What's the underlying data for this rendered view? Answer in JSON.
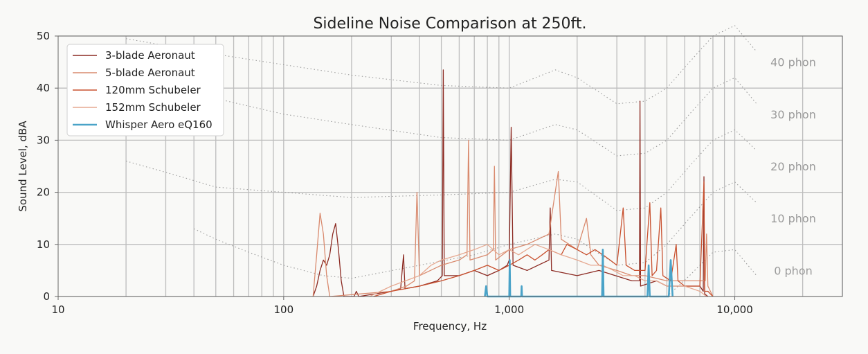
{
  "chart_data": {
    "type": "line",
    "title": "Sideline Noise Comparison at 250ft.",
    "xlabel": "Frequency, Hz",
    "ylabel": "Sound Level, dBA",
    "xscale": "log",
    "xlim": [
      10,
      30000
    ],
    "ylim": [
      0,
      50
    ],
    "grid": true,
    "legend_position": "top-left",
    "x_ticks": [
      {
        "value": 10,
        "label": "10"
      },
      {
        "value": 100,
        "label": "100"
      },
      {
        "value": 1000,
        "label": "1,000"
      },
      {
        "value": 10000,
        "label": "10,000"
      }
    ],
    "y_ticks": [
      {
        "value": 0,
        "label": "0"
      },
      {
        "value": 10,
        "label": "10"
      },
      {
        "value": 20,
        "label": "20"
      },
      {
        "value": 30,
        "label": "30"
      },
      {
        "value": 40,
        "label": "40"
      },
      {
        "value": 50,
        "label": "50"
      }
    ],
    "phon_contours": [
      {
        "label": "40 phon",
        "label_value": 45,
        "points": [
          [
            20,
            49.5
          ],
          [
            50,
            46.5
          ],
          [
            100,
            44.5
          ],
          [
            200,
            42.5
          ],
          [
            500,
            40.5
          ],
          [
            1000,
            40
          ],
          [
            1600,
            43.5
          ],
          [
            2000,
            42
          ],
          [
            3000,
            37
          ],
          [
            4000,
            37.5
          ],
          [
            5000,
            40
          ],
          [
            6300,
            45
          ],
          [
            8000,
            50
          ],
          [
            10000,
            52
          ],
          [
            12500,
            47
          ]
        ]
      },
      {
        "label": "30 phon",
        "label_value": 35,
        "points": [
          [
            20,
            43
          ],
          [
            50,
            38
          ],
          [
            100,
            35
          ],
          [
            200,
            33
          ],
          [
            500,
            30.5
          ],
          [
            1000,
            30
          ],
          [
            1600,
            33
          ],
          [
            2000,
            32
          ],
          [
            3000,
            27
          ],
          [
            4000,
            27.5
          ],
          [
            5000,
            30
          ],
          [
            6300,
            35
          ],
          [
            8000,
            40
          ],
          [
            10000,
            42
          ],
          [
            12500,
            37
          ]
        ]
      },
      {
        "label": "20 phon",
        "label_value": 25,
        "points": [
          [
            20,
            26
          ],
          [
            35,
            23
          ],
          [
            50,
            21
          ],
          [
            100,
            20
          ],
          [
            200,
            19
          ],
          [
            500,
            19.5
          ],
          [
            1000,
            20
          ],
          [
            1600,
            22.5
          ],
          [
            2000,
            22
          ],
          [
            3000,
            16.5
          ],
          [
            4000,
            17
          ],
          [
            5000,
            20
          ],
          [
            6300,
            25
          ],
          [
            8000,
            30
          ],
          [
            10000,
            32
          ],
          [
            12500,
            28
          ]
        ]
      },
      {
        "label": "10 phon",
        "label_value": 15,
        "points": [
          [
            40,
            13
          ],
          [
            50,
            11
          ],
          [
            70,
            8.5
          ],
          [
            100,
            6
          ],
          [
            150,
            4
          ],
          [
            200,
            3.5
          ],
          [
            400,
            6
          ],
          [
            700,
            8
          ],
          [
            1000,
            10
          ],
          [
            1600,
            12
          ],
          [
            2000,
            11
          ],
          [
            3000,
            6
          ],
          [
            4000,
            6.5
          ],
          [
            5000,
            10
          ],
          [
            6300,
            15
          ],
          [
            8000,
            20
          ],
          [
            10000,
            22
          ],
          [
            12500,
            18
          ]
        ]
      },
      {
        "label": "0 phon",
        "label_value": 5,
        "points": [
          [
            5000,
            0
          ],
          [
            6300,
            4
          ],
          [
            8000,
            8.5
          ],
          [
            10000,
            9
          ],
          [
            12500,
            4
          ]
        ]
      }
    ],
    "series": [
      {
        "name": "3-blade Aeronaut",
        "color": "#8c2a22",
        "points": [
          [
            135,
            0
          ],
          [
            140,
            2
          ],
          [
            145,
            5
          ],
          [
            150,
            7
          ],
          [
            155,
            6
          ],
          [
            160,
            8
          ],
          [
            165,
            12
          ],
          [
            170,
            14
          ],
          [
            175,
            9
          ],
          [
            180,
            3
          ],
          [
            185,
            0
          ],
          [
            205,
            0
          ],
          [
            210,
            1
          ],
          [
            215,
            0
          ],
          [
            300,
            1
          ],
          [
            330,
            1.5
          ],
          [
            340,
            8
          ],
          [
            345,
            1.5
          ],
          [
            400,
            2
          ],
          [
            480,
            3
          ],
          [
            505,
            4
          ],
          [
            510,
            43.5
          ],
          [
            515,
            4
          ],
          [
            600,
            4
          ],
          [
            700,
            5
          ],
          [
            800,
            4
          ],
          [
            900,
            5
          ],
          [
            980,
            6
          ],
          [
            1000,
            7
          ],
          [
            1020,
            32.5
          ],
          [
            1040,
            6
          ],
          [
            1200,
            5
          ],
          [
            1500,
            7
          ],
          [
            1520,
            17
          ],
          [
            1540,
            5
          ],
          [
            2000,
            4
          ],
          [
            2500,
            5
          ],
          [
            3500,
            3
          ],
          [
            3780,
            3
          ],
          [
            3800,
            37.5
          ],
          [
            3820,
            2
          ],
          [
            4500,
            3
          ],
          [
            5000,
            2
          ],
          [
            6000,
            2
          ],
          [
            7000,
            2
          ],
          [
            7250,
            1
          ],
          [
            7300,
            23
          ],
          [
            7350,
            0.5
          ],
          [
            7600,
            0
          ]
        ]
      },
      {
        "label_note": "",
        "name": "5-blade Aeronaut",
        "color": "#d98a6e",
        "points": [
          [
            135,
            0
          ],
          [
            140,
            8
          ],
          [
            145,
            16
          ],
          [
            150,
            12
          ],
          [
            155,
            4
          ],
          [
            160,
            0
          ],
          [
            300,
            1
          ],
          [
            350,
            2
          ],
          [
            380,
            3
          ],
          [
            390,
            20
          ],
          [
            400,
            4
          ],
          [
            500,
            6
          ],
          [
            600,
            7
          ],
          [
            650,
            8
          ],
          [
            660,
            30
          ],
          [
            670,
            7
          ],
          [
            800,
            8
          ],
          [
            850,
            9
          ],
          [
            860,
            25
          ],
          [
            870,
            7
          ],
          [
            1000,
            9
          ],
          [
            1200,
            10
          ],
          [
            1500,
            12
          ],
          [
            1650,
            24
          ],
          [
            1700,
            11
          ],
          [
            2000,
            9
          ],
          [
            2200,
            15
          ],
          [
            2300,
            8
          ],
          [
            2500,
            6
          ],
          [
            3000,
            5
          ],
          [
            3500,
            4
          ],
          [
            4000,
            4
          ],
          [
            5000,
            3
          ],
          [
            7400,
            3
          ],
          [
            7500,
            12
          ],
          [
            7600,
            2
          ],
          [
            8000,
            0
          ]
        ]
      },
      {
        "name": "120mm Schubeler",
        "color": "#c8502e",
        "points": [
          [
            250,
            0
          ],
          [
            300,
            1
          ],
          [
            400,
            2
          ],
          [
            500,
            3
          ],
          [
            600,
            4
          ],
          [
            700,
            5
          ],
          [
            800,
            6
          ],
          [
            900,
            5
          ],
          [
            1000,
            6
          ],
          [
            1100,
            7
          ],
          [
            1200,
            8
          ],
          [
            1300,
            7
          ],
          [
            1400,
            8
          ],
          [
            1500,
            9
          ],
          [
            1700,
            8
          ],
          [
            1800,
            10
          ],
          [
            2000,
            9
          ],
          [
            2200,
            8
          ],
          [
            2400,
            9
          ],
          [
            2600,
            8
          ],
          [
            2800,
            7
          ],
          [
            3000,
            6
          ],
          [
            3200,
            17
          ],
          [
            3300,
            6
          ],
          [
            3600,
            5
          ],
          [
            4000,
            5
          ],
          [
            4200,
            18
          ],
          [
            4300,
            4
          ],
          [
            4500,
            5
          ],
          [
            4700,
            17
          ],
          [
            4800,
            4
          ],
          [
            5200,
            3
          ],
          [
            5500,
            10
          ],
          [
            5600,
            3
          ],
          [
            6000,
            2
          ],
          [
            6500,
            2
          ],
          [
            7000,
            2
          ],
          [
            7300,
            22
          ],
          [
            7350,
            1
          ],
          [
            7600,
            1
          ],
          [
            8000,
            0
          ]
        ]
      },
      {
        "name": "152mm Schubeler",
        "color": "#e6a890",
        "points": [
          [
            240,
            0
          ],
          [
            300,
            2
          ],
          [
            400,
            4
          ],
          [
            450,
            6
          ],
          [
            500,
            7
          ],
          [
            600,
            8
          ],
          [
            700,
            9
          ],
          [
            800,
            10
          ],
          [
            900,
            8
          ],
          [
            1000,
            9
          ],
          [
            1100,
            8
          ],
          [
            1300,
            10
          ],
          [
            1500,
            9
          ],
          [
            1700,
            8
          ],
          [
            2000,
            7
          ],
          [
            2300,
            6
          ],
          [
            2600,
            6
          ],
          [
            2900,
            5
          ],
          [
            3200,
            4
          ],
          [
            3600,
            4
          ],
          [
            4000,
            3
          ],
          [
            4500,
            3
          ],
          [
            5000,
            2
          ],
          [
            6000,
            2
          ],
          [
            7000,
            1
          ],
          [
            7500,
            0
          ]
        ]
      },
      {
        "name": "Whisper Aero eQ160",
        "color": "#4aa3c8",
        "points": [
          [
            780,
            0
          ],
          [
            790,
            2
          ],
          [
            800,
            0
          ],
          [
            1000,
            0
          ],
          [
            1005,
            7
          ],
          [
            1010,
            0
          ],
          [
            1130,
            0
          ],
          [
            1135,
            2
          ],
          [
            1140,
            0
          ],
          [
            2580,
            0
          ],
          [
            2600,
            9
          ],
          [
            2620,
            0
          ],
          [
            4100,
            0
          ],
          [
            4150,
            6
          ],
          [
            4200,
            0
          ],
          [
            5100,
            0
          ],
          [
            5200,
            7
          ],
          [
            5300,
            0
          ]
        ]
      }
    ]
  }
}
